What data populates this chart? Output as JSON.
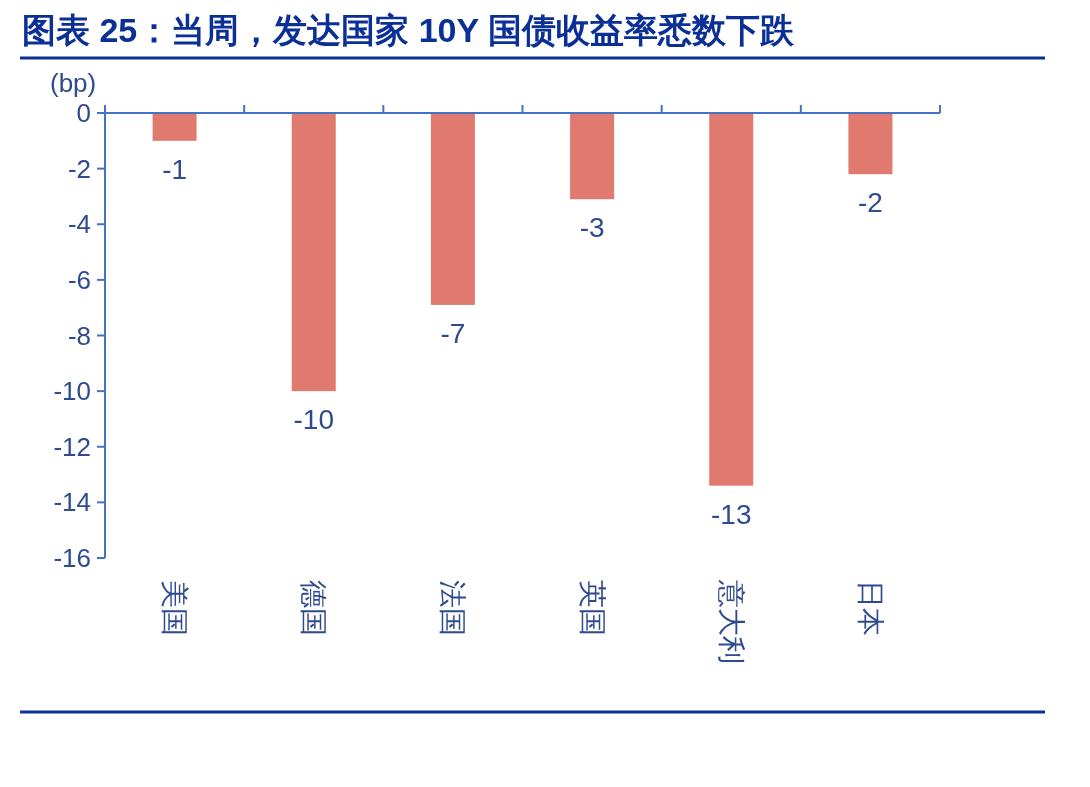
{
  "chart_data": {
    "type": "bar",
    "title": "图表 25：当周，发达国家 10Y 国债收益率悉数下跌",
    "ylabel": "(bp)",
    "categories": [
      "美国",
      "德国",
      "法国",
      "英国",
      "意大利",
      "日本"
    ],
    "values": [
      -1.0,
      -10.0,
      -6.9,
      -3.1,
      -13.4,
      -2.2
    ],
    "value_labels": [
      "-1",
      "-10",
      "-7",
      "-3",
      "-13",
      "-2"
    ],
    "color": "#e07a6e",
    "ylim": [
      -16,
      0
    ],
    "yticks": [
      0,
      -2,
      -4,
      -6,
      -8,
      -10,
      -12,
      -14,
      -16
    ]
  }
}
